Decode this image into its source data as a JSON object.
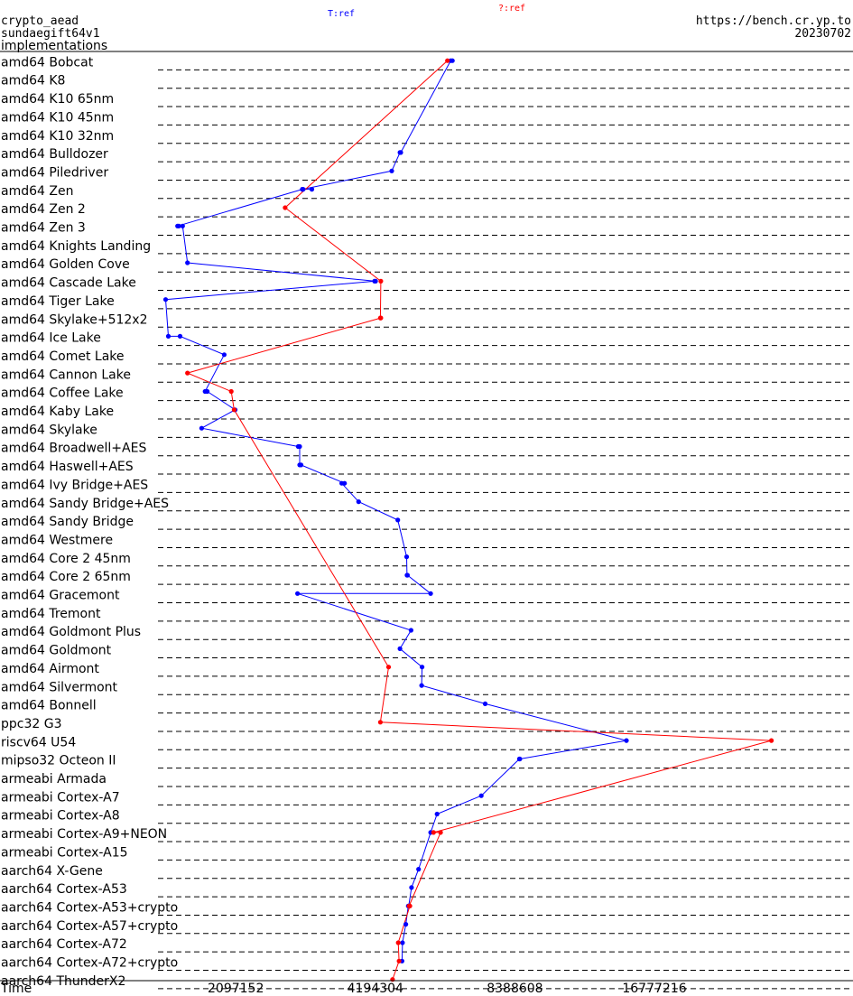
{
  "header": {
    "primitive": "crypto_aead",
    "algorithm": "sundaegift64v1",
    "section": "implementations",
    "url": "https://bench.cr.yp.to",
    "date": "20230702",
    "series_t_label": "T:ref",
    "series_q_label": "?:ref"
  },
  "colors": {
    "t_series": "#0000ff",
    "q_series": "#ff0000",
    "text": "#000000",
    "dash": "#000000"
  },
  "chart_data": {
    "type": "line",
    "xlabel": "Time",
    "x_scale": "log",
    "x_ticks": [
      "2097152",
      "4194304",
      "8388608",
      "16777216"
    ],
    "x_tick_values": [
      2097152,
      4194304,
      8388608,
      16777216
    ],
    "xlim": [
      650000,
      45000000
    ],
    "rows": [
      "amd64 Bobcat",
      "amd64 K8",
      "amd64 K10 65nm",
      "amd64 K10 45nm",
      "amd64 K10 32nm",
      "amd64 Bulldozer",
      "amd64 Piledriver",
      "amd64 Zen",
      "amd64 Zen 2",
      "amd64 Zen 3",
      "amd64 Knights Landing",
      "amd64 Golden Cove",
      "amd64 Cascade Lake",
      "amd64 Tiger Lake",
      "amd64 Skylake+512x2",
      "amd64 Ice Lake",
      "amd64 Comet Lake",
      "amd64 Cannon Lake",
      "amd64 Coffee Lake",
      "amd64 Kaby Lake",
      "amd64 Skylake",
      "amd64 Broadwell+AES",
      "amd64 Haswell+AES",
      "amd64 Ivy Bridge+AES",
      "amd64 Sandy Bridge+AES",
      "amd64 Sandy Bridge",
      "amd64 Westmere",
      "amd64 Core 2 45nm",
      "amd64 Core 2 65nm",
      "amd64 Gracemont",
      "amd64 Tremont",
      "amd64 Goldmont Plus",
      "amd64 Goldmont",
      "amd64 Airmont",
      "amd64 Silvermont",
      "amd64 Bonnell",
      "ppc32 G3",
      "riscv64 U54",
      "mipso32 Octeon II",
      "armeabi Armada",
      "armeabi Cortex-A7",
      "armeabi Cortex-A8",
      "armeabi Cortex-A9+NEON",
      "armeabi Cortex-A15",
      "aarch64 X-Gene",
      "aarch64 Cortex-A53",
      "aarch64 Cortex-A53+crypto",
      "aarch64 Cortex-A57+crypto",
      "aarch64 Cortex-A72",
      "aarch64 Cortex-A72+crypto",
      "aarch64 ThunderX2"
    ],
    "series": [
      {
        "name": "T:ref",
        "points": [
          {
            "row": 0,
            "x": 6150000
          },
          {
            "row": 0,
            "x": 6100000
          },
          {
            "row": 5,
            "x": 4760000
          },
          {
            "row": 5,
            "x": 4740000
          },
          {
            "row": 6,
            "x": 4550000
          },
          {
            "row": 7,
            "x": 2920000
          },
          {
            "row": 7,
            "x": 2930000
          },
          {
            "row": 7,
            "x": 3060000
          },
          {
            "row": 7,
            "x": 2920000
          },
          {
            "row": 9,
            "x": 1570000
          },
          {
            "row": 9,
            "x": 1580000
          },
          {
            "row": 9,
            "x": 1610000
          },
          {
            "row": 11,
            "x": 1650000
          },
          {
            "row": 12,
            "x": 4200000
          },
          {
            "row": 12,
            "x": 4180000
          },
          {
            "row": 13,
            "x": 1480000
          },
          {
            "row": 15,
            "x": 1500000
          },
          {
            "row": 15,
            "x": 1590000
          },
          {
            "row": 16,
            "x": 1980000
          },
          {
            "row": 18,
            "x": 1800000
          },
          {
            "row": 18,
            "x": 1820000
          },
          {
            "row": 19,
            "x": 2090000
          },
          {
            "row": 20,
            "x": 1770000
          },
          {
            "row": 21,
            "x": 2860000
          },
          {
            "row": 21,
            "x": 2880000
          },
          {
            "row": 22,
            "x": 2880000
          },
          {
            "row": 22,
            "x": 2900000
          },
          {
            "row": 23,
            "x": 3600000
          },
          {
            "row": 23,
            "x": 3550000
          },
          {
            "row": 24,
            "x": 3860000
          },
          {
            "row": 25,
            "x": 4690000
          },
          {
            "row": 27,
            "x": 4900000
          },
          {
            "row": 28,
            "x": 4910000
          },
          {
            "row": 28,
            "x": 4920000
          },
          {
            "row": 29,
            "x": 5520000
          },
          {
            "row": 29,
            "x": 2850000
          },
          {
            "row": 31,
            "x": 5010000
          },
          {
            "row": 32,
            "x": 4740000
          },
          {
            "row": 33,
            "x": 5290000
          },
          {
            "row": 34,
            "x": 5280000
          },
          {
            "row": 35,
            "x": 7240000
          },
          {
            "row": 37,
            "x": 14600000
          },
          {
            "row": 38,
            "x": 8600000
          },
          {
            "row": 38,
            "x": 8580000
          },
          {
            "row": 40,
            "x": 7100000
          },
          {
            "row": 41,
            "x": 5700000
          },
          {
            "row": 42,
            "x": 5520000
          },
          {
            "row": 44,
            "x": 5200000
          },
          {
            "row": 45,
            "x": 5020000
          },
          {
            "row": 46,
            "x": 4950000
          },
          {
            "row": 46,
            "x": 4940000
          },
          {
            "row": 47,
            "x": 4880000
          },
          {
            "row": 48,
            "x": 4800000
          },
          {
            "row": 49,
            "x": 4790000
          }
        ]
      },
      {
        "name": "?:ref",
        "points": [
          {
            "row": 0,
            "x": 6000000
          },
          {
            "row": 8,
            "x": 2680000
          },
          {
            "row": 12,
            "x": 4310000
          },
          {
            "row": 14,
            "x": 4300000
          },
          {
            "row": 14,
            "x": 4310000
          },
          {
            "row": 17,
            "x": 1650000
          },
          {
            "row": 18,
            "x": 2050000
          },
          {
            "row": 19,
            "x": 2080000
          },
          {
            "row": 33,
            "x": 4480000
          },
          {
            "row": 36,
            "x": 4300000
          },
          {
            "row": 37,
            "x": 30000000
          },
          {
            "row": 42,
            "x": 5600000
          },
          {
            "row": 42,
            "x": 5800000
          },
          {
            "row": 46,
            "x": 4960000
          },
          {
            "row": 46,
            "x": 4980000
          },
          {
            "row": 48,
            "x": 4700000
          },
          {
            "row": 49,
            "x": 4720000
          },
          {
            "row": 50,
            "x": 4570000
          }
        ]
      }
    ]
  }
}
